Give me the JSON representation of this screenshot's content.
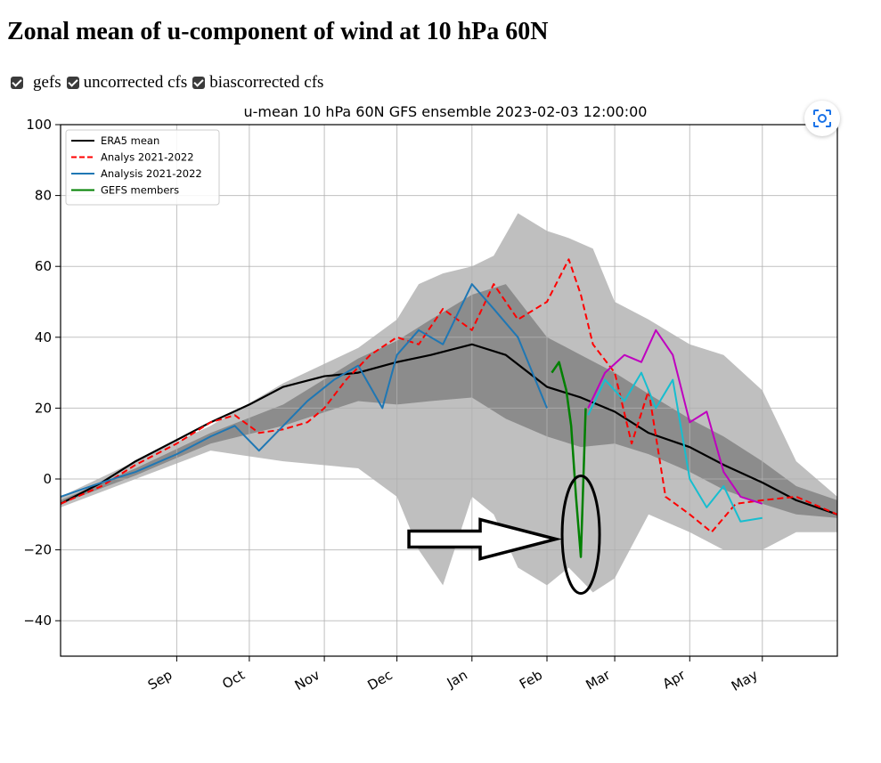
{
  "page": {
    "title": "Zonal mean of u-component of wind at 10 hPa 60N",
    "checkboxes": [
      {
        "label": "gefs",
        "checked": true
      },
      {
        "label": "uncorrected cfs",
        "checked": true
      },
      {
        "label": "biascorrected cfs",
        "checked": true
      }
    ]
  },
  "icons": {
    "zoom": "zoom-focus-icon"
  },
  "colors": {
    "era5": "#000000",
    "analys_dashed": "#ff0000",
    "analysis": "#1f77b4",
    "gefs": "#008000",
    "magenta": "#bf00bf",
    "cyan": "#17becf",
    "spread_outer": "#bfbfbf",
    "spread_inner": "#8c8c8c",
    "annotation": "#000000"
  },
  "chart_data": {
    "type": "line",
    "title": "u-mean 10 hPa 60N GFS ensemble 2023-02-03 12:00:00",
    "ylim": [
      -50,
      100
    ],
    "yticks": [
      100,
      80,
      60,
      40,
      20,
      0,
      -20,
      -40
    ],
    "ytick_labels": [
      "100",
      "80",
      "60",
      "40",
      "20",
      "0",
      "−20",
      "−40"
    ],
    "xlim": [
      "2022-07-15",
      "2023-06-01"
    ],
    "xticks": [
      {
        "date": "2022-09-01",
        "label": "Sep"
      },
      {
        "date": "2022-10-01",
        "label": "Oct"
      },
      {
        "date": "2022-11-01",
        "label": "Nov"
      },
      {
        "date": "2022-12-01",
        "label": "Dec"
      },
      {
        "date": "2023-01-01",
        "label": "Jan"
      },
      {
        "date": "2023-02-01",
        "label": "Feb"
      },
      {
        "date": "2023-03-01",
        "label": "Mar"
      },
      {
        "date": "2023-04-01",
        "label": "Apr"
      },
      {
        "date": "2023-05-01",
        "label": "May"
      }
    ],
    "grid": true,
    "legend_position": "top-left",
    "legend": [
      {
        "label": "ERA5 mean",
        "style": "solid",
        "color": "#000000"
      },
      {
        "label": "Analys 2021-2022",
        "style": "dashed",
        "color": "#ff0000"
      },
      {
        "label": "Analysis 2021-2022",
        "style": "solid",
        "color": "#1f77b4"
      },
      {
        "label": "GEFS members",
        "style": "solid",
        "color": "#008000"
      }
    ],
    "bands": {
      "outer": {
        "x": [
          "2022-07-15",
          "2022-08-15",
          "2022-09-15",
          "2022-10-15",
          "2022-11-15",
          "2022-12-01",
          "2022-12-10",
          "2022-12-20",
          "2023-01-01",
          "2023-01-10",
          "2023-01-20",
          "2023-02-01",
          "2023-02-10",
          "2023-02-20",
          "2023-03-01",
          "2023-03-15",
          "2023-04-01",
          "2023-04-15",
          "2023-05-01",
          "2023-05-15",
          "2023-06-01"
        ],
        "upper": [
          -5,
          5,
          15,
          27,
          37,
          45,
          55,
          58,
          60,
          63,
          75,
          70,
          68,
          65,
          50,
          45,
          38,
          35,
          25,
          5,
          -5
        ],
        "lower": [
          -8,
          0,
          8,
          5,
          3,
          -5,
          -20,
          -30,
          -5,
          -10,
          -25,
          -30,
          -25,
          -32,
          -28,
          -10,
          -15,
          -20,
          -20,
          -15,
          -15
        ]
      },
      "inner": {
        "x": [
          "2022-07-15",
          "2022-08-15",
          "2022-09-15",
          "2022-10-15",
          "2022-11-15",
          "2022-12-01",
          "2022-12-15",
          "2023-01-01",
          "2023-01-15",
          "2023-02-01",
          "2023-02-15",
          "2023-03-01",
          "2023-03-15",
          "2023-04-01",
          "2023-04-15",
          "2023-05-01",
          "2023-05-15",
          "2023-06-01"
        ],
        "upper": [
          -6,
          3,
          13,
          21,
          34,
          39,
          45,
          52,
          55,
          40,
          35,
          30,
          24,
          17,
          12,
          5,
          -2,
          -6
        ],
        "lower": [
          -7,
          1,
          10,
          15,
          22,
          21,
          22,
          23,
          17,
          12,
          9,
          10,
          7,
          2,
          -3,
          -7,
          -10,
          -11
        ]
      }
    },
    "series": [
      {
        "name": "ERA5 mean",
        "x": [
          "2022-07-15",
          "2022-08-01",
          "2022-08-15",
          "2022-09-01",
          "2022-09-15",
          "2022-10-01",
          "2022-10-15",
          "2022-11-01",
          "2022-11-15",
          "2022-12-01",
          "2022-12-15",
          "2023-01-01",
          "2023-01-15",
          "2023-02-01",
          "2023-02-15",
          "2023-03-01",
          "2023-03-15",
          "2023-04-01",
          "2023-04-15",
          "2023-05-01",
          "2023-05-15",
          "2023-06-01"
        ],
        "y": [
          -7,
          -1,
          5,
          11,
          16,
          21,
          26,
          29,
          30,
          33,
          35,
          38,
          35,
          26,
          23,
          19,
          13,
          9,
          4,
          -1,
          -6,
          -10
        ]
      },
      {
        "name": "Analys 2021-2022",
        "x": [
          "2022-07-15",
          "2022-08-01",
          "2022-08-15",
          "2022-09-01",
          "2022-09-15",
          "2022-09-25",
          "2022-10-05",
          "2022-10-15",
          "2022-10-25",
          "2022-11-01",
          "2022-11-10",
          "2022-11-20",
          "2022-12-01",
          "2022-12-10",
          "2022-12-20",
          "2023-01-01",
          "2023-01-10",
          "2023-01-20",
          "2023-02-01",
          "2023-02-10",
          "2023-02-15",
          "2023-02-20",
          "2023-03-01",
          "2023-03-08",
          "2023-03-15",
          "2023-03-22",
          "2023-04-01",
          "2023-04-10",
          "2023-04-20",
          "2023-05-01",
          "2023-05-15",
          "2023-06-01"
        ],
        "y": [
          -7,
          -2,
          4,
          10,
          16,
          18,
          13,
          14,
          16,
          20,
          28,
          35,
          40,
          38,
          48,
          42,
          55,
          45,
          50,
          62,
          52,
          38,
          30,
          10,
          25,
          -5,
          -10,
          -15,
          -7,
          -6,
          -5,
          -10
        ]
      },
      {
        "name": "Analysis 2021-2022",
        "x": [
          "2022-07-15",
          "2022-08-01",
          "2022-08-15",
          "2022-09-01",
          "2022-09-15",
          "2022-09-25",
          "2022-10-05",
          "2022-10-15",
          "2022-10-25",
          "2022-11-05",
          "2022-11-15",
          "2022-11-25",
          "2022-12-01",
          "2022-12-10",
          "2022-12-20",
          "2023-01-01",
          "2023-01-10",
          "2023-01-20",
          "2023-02-01"
        ],
        "y": [
          -5,
          -1,
          2,
          7,
          12,
          15,
          8,
          15,
          22,
          28,
          32,
          20,
          35,
          42,
          38,
          55,
          48,
          40,
          20
        ]
      },
      {
        "name": "GEFS members",
        "x": [
          "2023-02-03",
          "2023-02-06",
          "2023-02-09",
          "2023-02-11",
          "2023-02-13",
          "2023-02-15",
          "2023-02-17"
        ],
        "y": [
          30,
          33,
          25,
          15,
          -5,
          -22,
          20
        ]
      },
      {
        "name": "",
        "x": [
          "2023-02-18",
          "2023-02-25",
          "2023-03-05",
          "2023-03-12",
          "2023-03-18",
          "2023-03-25",
          "2023-04-01",
          "2023-04-08",
          "2023-04-15",
          "2023-04-22",
          "2023-05-01"
        ],
        "y": [
          20,
          30,
          35,
          33,
          42,
          35,
          16,
          19,
          2,
          -5,
          -7
        ]
      },
      {
        "name": "",
        "x": [
          "2023-02-18",
          "2023-02-25",
          "2023-03-05",
          "2023-03-12",
          "2023-03-18",
          "2023-03-25",
          "2023-04-01",
          "2023-04-08",
          "2023-04-15",
          "2023-04-22",
          "2023-05-01"
        ],
        "y": [
          18,
          28,
          22,
          30,
          20,
          28,
          0,
          -8,
          -2,
          -12,
          -11
        ]
      }
    ],
    "annotations": [
      {
        "type": "arrow",
        "points_to": "GEFS members minimum"
      },
      {
        "type": "ellipse",
        "around": "GEFS members minimum"
      }
    ]
  }
}
